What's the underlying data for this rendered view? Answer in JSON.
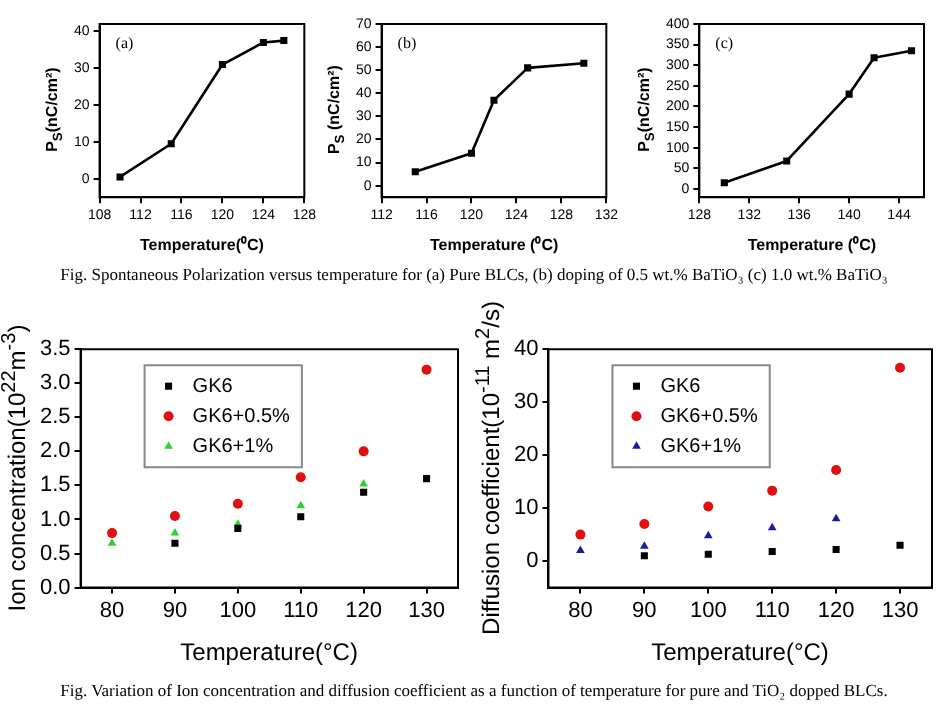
{
  "chart_data": [
    {
      "type": "line",
      "title": "(a)",
      "xlabel": "Temperature(⁰C)",
      "ylabel": "P$_{S}$(nC/cm²)",
      "x": [
        110,
        115,
        120,
        124,
        126
      ],
      "series": [
        {
          "color": "#000000",
          "values": [
            0.5,
            9.5,
            31,
            37,
            37.5
          ]
        }
      ],
      "xlim": [
        108,
        128
      ],
      "xticks": [
        108,
        112,
        116,
        120,
        124,
        128
      ],
      "ylim": [
        -5,
        42
      ],
      "yticks": [
        0,
        10,
        20,
        30,
        40
      ],
      "marker": "square",
      "line_style": "solid",
      "grid": false,
      "legend": false
    },
    {
      "type": "line",
      "title": "(b)",
      "xlabel": "Temperature (⁰C)",
      "ylabel": "P$_{S}$ (nC/cm²)",
      "x": [
        115,
        120,
        122,
        125,
        130
      ],
      "series": [
        {
          "color": "#000000",
          "values": [
            6,
            14,
            37,
            51,
            53
          ]
        }
      ],
      "xlim": [
        112,
        132
      ],
      "xticks": [
        112,
        116,
        120,
        124,
        128,
        132
      ],
      "ylim": [
        -5,
        70
      ],
      "yticks": [
        0,
        10,
        20,
        30,
        40,
        50,
        60,
        70
      ],
      "marker": "square",
      "line_style": "solid",
      "grid": false,
      "legend": false,
      "annotations": [
        "Fig. Spontaneous Polarization versus temperature for (a) Pure BLCs, (b) doping of 0.5 wt.% BaTiO₃ (c) 1.0 wt.% BaTiO₃"
      ]
    },
    {
      "type": "line",
      "title": "(c)",
      "xlabel": "Temperature (⁰C)",
      "ylabel": "P$_{S}$(nC/cm²)",
      "x": [
        130,
        135,
        140,
        142,
        145
      ],
      "series": [
        {
          "color": "#000000",
          "values": [
            15,
            68,
            230,
            318,
            335
          ]
        }
      ],
      "xlim": [
        128,
        146
      ],
      "xticks": [
        128,
        132,
        136,
        140,
        144
      ],
      "ylim": [
        -20,
        400
      ],
      "yticks": [
        0,
        50,
        100,
        150,
        200,
        250,
        300,
        350,
        400
      ],
      "marker": "square",
      "line_style": "solid",
      "grid": false,
      "legend": false
    },
    {
      "type": "scatter",
      "xlabel": "Temperature(°C)",
      "ylabel": "Ion concentration(10$^{22}$m$^{-3}$)",
      "x": [
        80,
        90,
        100,
        110,
        120,
        130
      ],
      "series": [
        {
          "name": "GK6",
          "color": "#000000",
          "marker": "square",
          "values": [
            null,
            0.65,
            0.87,
            1.04,
            1.4,
            1.6
          ]
        },
        {
          "name": "GK6+0.5%",
          "color": "#e01010",
          "marker": "circle",
          "values": [
            0.8,
            1.05,
            1.23,
            1.62,
            2.0,
            3.2
          ]
        },
        {
          "name": "GK6+1%",
          "color": "#30d030",
          "marker": "triangle",
          "values": [
            0.65,
            0.8,
            0.93,
            1.2,
            1.52,
            null
          ]
        }
      ],
      "xlim": [
        75,
        135
      ],
      "xticks": [
        80,
        90,
        100,
        110,
        120,
        130
      ],
      "ylim": [
        0,
        3.5
      ],
      "yticks": [
        {
          "value": 0,
          "label": "0.0"
        },
        0.5,
        {
          "value": 1,
          "label": "1.0"
        },
        1.5,
        {
          "value": 2,
          "label": "2.0"
        },
        2.5,
        {
          "value": 3,
          "label": "3.0"
        },
        3.5
      ],
      "grid": false,
      "legend": "top left"
    },
    {
      "type": "scatter",
      "xlabel": "Temperature(°C)",
      "ylabel": "Diffusion coefficient(10$^{-11}$ m$^{2}$/s)",
      "x": [
        80,
        90,
        100,
        110,
        120,
        130
      ],
      "series": [
        {
          "name": "GK6",
          "color": "#000000",
          "marker": "square",
          "values": [
            null,
            1,
            1.3,
            1.8,
            2.2,
            3
          ]
        },
        {
          "name": "GK6+0.5%",
          "color": "#e01010",
          "marker": "circle",
          "values": [
            5,
            7,
            10.3,
            13.3,
            17.2,
            36.5
          ]
        },
        {
          "name": "GK6+1%",
          "color": "#1a1aa0",
          "marker": "triangle",
          "values": [
            2,
            2.8,
            4.8,
            6.3,
            8,
            null
          ]
        }
      ],
      "xlim": [
        75,
        135
      ],
      "xticks": [
        80,
        90,
        100,
        110,
        120,
        130
      ],
      "ylim": [
        -5,
        40
      ],
      "yticks": [
        0,
        10,
        20,
        30,
        40
      ],
      "grid": false,
      "legend": "top left",
      "annotations": [
        "Fig. Variation of Ion concentration and diffusion coefficient as a function of temperature for pure and TiO₂ dopped BLCs."
      ]
    }
  ]
}
